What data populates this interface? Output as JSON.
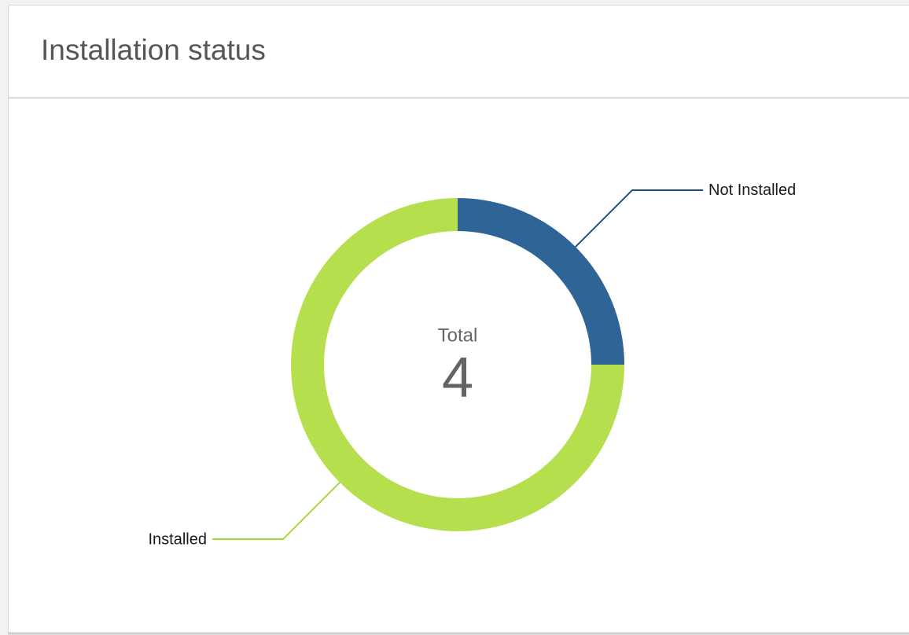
{
  "chart_data": {
    "type": "donut",
    "title": "Installation status",
    "center_label": "Total",
    "center_value": 4,
    "categories": [
      "Not Installed",
      "Installed"
    ],
    "values": [
      1,
      3
    ],
    "colors": [
      "#2f6497",
      "#b6df4e"
    ],
    "leader_colors": [
      "#1c4f7e",
      "#a6d63c"
    ]
  }
}
